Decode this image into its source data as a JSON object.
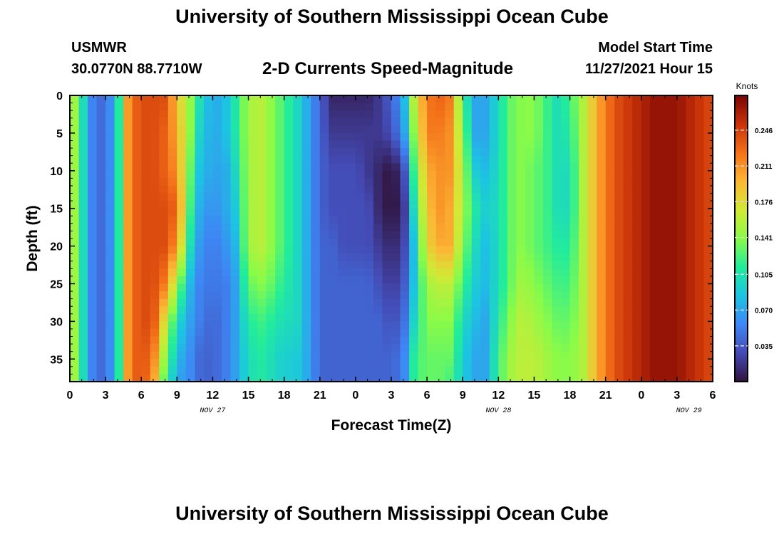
{
  "header": {
    "title": "University of Southern Mississippi Ocean Cube",
    "station": "USMWR",
    "coordinates": "30.0770N  88.7710W",
    "plot_title": "2-D Currents Speed-Magnitude",
    "model_start_label": "Model Start Time",
    "model_start_value": "11/27/2021 Hour 15"
  },
  "footer": {
    "title": "University of Southern Mississippi Ocean Cube"
  },
  "chart_data": {
    "type": "heatmap",
    "title": "2-D Currents Speed-Magnitude",
    "xlabel": "Forecast Time(Z)",
    "ylabel": "Depth (ft)",
    "x_unit": "hours since 0Z NOV 27",
    "xlim": [
      0,
      54
    ],
    "ylim": [
      0,
      38
    ],
    "y_reversed": true,
    "x_ticks": [
      0,
      3,
      6,
      9,
      12,
      15,
      18,
      21,
      24,
      27,
      30,
      33,
      36,
      39,
      42,
      45,
      48,
      51,
      54
    ],
    "x_tick_labels": [
      "0",
      "3",
      "6",
      "9",
      "12",
      "15",
      "18",
      "21",
      "0",
      "3",
      "6",
      "9",
      "12",
      "15",
      "18",
      "21",
      "0",
      "3",
      "6"
    ],
    "y_ticks": [
      0,
      5,
      10,
      15,
      20,
      25,
      30,
      35
    ],
    "y_tick_labels": [
      "0",
      "5",
      "10",
      "15",
      "20",
      "25",
      "30",
      "35"
    ],
    "date_labels": [
      {
        "text": "NOV 27",
        "x": 12
      },
      {
        "text": "NOV 28",
        "x": 36
      },
      {
        "text": "NOV 29",
        "x": 52
      }
    ],
    "colorbar": {
      "label": "Knots",
      "min": 0,
      "max": 0.28,
      "ticks": [
        0.035,
        0.07,
        0.105,
        0.141,
        0.176,
        0.211,
        0.246
      ],
      "tick_labels": [
        "0.035",
        "0.070",
        "0.105",
        "0.141",
        "0.176",
        "0.211",
        "0.246"
      ]
    },
    "grid": false,
    "depths": [
      0,
      5,
      10,
      15,
      20,
      25,
      30,
      35,
      38
    ],
    "times": [
      0,
      0.5,
      1,
      1.5,
      2,
      3,
      4,
      4.5,
      5,
      6,
      7,
      8,
      9,
      10,
      10.5,
      11,
      12,
      13,
      14,
      15,
      16,
      17,
      18,
      19,
      20,
      21,
      22,
      23,
      24,
      25,
      26,
      27,
      28,
      29,
      30,
      31,
      32,
      33,
      34,
      35,
      36,
      37,
      38,
      39,
      40,
      41,
      42,
      43,
      44,
      45,
      46,
      47,
      48,
      49,
      50,
      51,
      52,
      53,
      54
    ],
    "speed_knots": [
      [
        0.17,
        0.17,
        0.17,
        0.17,
        0.17,
        0.17,
        0.17,
        0.17,
        0.17
      ],
      [
        0.14,
        0.14,
        0.14,
        0.14,
        0.14,
        0.14,
        0.14,
        0.14,
        0.14
      ],
      [
        0.11,
        0.11,
        0.11,
        0.11,
        0.11,
        0.11,
        0.11,
        0.11,
        0.11
      ],
      [
        0.07,
        0.07,
        0.07,
        0.07,
        0.07,
        0.07,
        0.07,
        0.07,
        0.07
      ],
      [
        0.05,
        0.05,
        0.05,
        0.05,
        0.05,
        0.05,
        0.05,
        0.05,
        0.05
      ],
      [
        0.04,
        0.04,
        0.04,
        0.04,
        0.04,
        0.04,
        0.04,
        0.04,
        0.04
      ],
      [
        0.09,
        0.09,
        0.09,
        0.09,
        0.09,
        0.09,
        0.09,
        0.09,
        0.09
      ],
      [
        0.17,
        0.17,
        0.17,
        0.17,
        0.17,
        0.17,
        0.17,
        0.17,
        0.17
      ],
      [
        0.22,
        0.22,
        0.22,
        0.22,
        0.22,
        0.22,
        0.22,
        0.22,
        0.22
      ],
      [
        0.24,
        0.24,
        0.24,
        0.24,
        0.24,
        0.24,
        0.24,
        0.24,
        0.24
      ],
      [
        0.24,
        0.24,
        0.24,
        0.24,
        0.24,
        0.24,
        0.24,
        0.22,
        0.21
      ],
      [
        0.24,
        0.23,
        0.23,
        0.24,
        0.24,
        0.22,
        0.17,
        0.14,
        0.12
      ],
      [
        0.19,
        0.2,
        0.21,
        0.23,
        0.21,
        0.15,
        0.1,
        0.08,
        0.07
      ],
      [
        0.15,
        0.15,
        0.14,
        0.13,
        0.11,
        0.08,
        0.07,
        0.06,
        0.06
      ],
      [
        0.12,
        0.11,
        0.1,
        0.09,
        0.08,
        0.07,
        0.06,
        0.05,
        0.05
      ],
      [
        0.1,
        0.09,
        0.08,
        0.07,
        0.06,
        0.05,
        0.05,
        0.04,
        0.04
      ],
      [
        0.07,
        0.07,
        0.07,
        0.06,
        0.05,
        0.05,
        0.04,
        0.04,
        0.04
      ],
      [
        0.08,
        0.08,
        0.07,
        0.07,
        0.06,
        0.05,
        0.05,
        0.05,
        0.05
      ],
      [
        0.11,
        0.11,
        0.1,
        0.09,
        0.08,
        0.07,
        0.07,
        0.07,
        0.07
      ],
      [
        0.15,
        0.15,
        0.15,
        0.15,
        0.15,
        0.13,
        0.11,
        0.1,
        0.1
      ],
      [
        0.16,
        0.16,
        0.16,
        0.16,
        0.16,
        0.14,
        0.12,
        0.11,
        0.11
      ],
      [
        0.14,
        0.14,
        0.14,
        0.14,
        0.14,
        0.13,
        0.11,
        0.1,
        0.1
      ],
      [
        0.12,
        0.12,
        0.12,
        0.12,
        0.12,
        0.11,
        0.1,
        0.09,
        0.09
      ],
      [
        0.1,
        0.1,
        0.1,
        0.1,
        0.1,
        0.1,
        0.1,
        0.09,
        0.09
      ],
      [
        0.07,
        0.07,
        0.07,
        0.07,
        0.07,
        0.07,
        0.07,
        0.07,
        0.07
      ],
      [
        0.04,
        0.04,
        0.04,
        0.04,
        0.04,
        0.04,
        0.04,
        0.04,
        0.04
      ],
      [
        0.01,
        0.02,
        0.03,
        0.03,
        0.04,
        0.04,
        0.04,
        0.04,
        0.04
      ],
      [
        0.01,
        0.02,
        0.03,
        0.03,
        0.03,
        0.04,
        0.04,
        0.04,
        0.04
      ],
      [
        0.01,
        0.02,
        0.03,
        0.03,
        0.03,
        0.04,
        0.04,
        0.04,
        0.04
      ],
      [
        0.01,
        0.02,
        0.02,
        0.03,
        0.03,
        0.04,
        0.04,
        0.04,
        0.04
      ],
      [
        0.02,
        0.02,
        0.01,
        0.01,
        0.02,
        0.03,
        0.04,
        0.04,
        0.04
      ],
      [
        0.04,
        0.03,
        0.0,
        0.0,
        0.01,
        0.02,
        0.03,
        0.04,
        0.04
      ],
      [
        0.07,
        0.06,
        0.02,
        0.01,
        0.02,
        0.03,
        0.04,
        0.05,
        0.05
      ],
      [
        0.17,
        0.15,
        0.13,
        0.11,
        0.09,
        0.09,
        0.1,
        0.12,
        0.12
      ],
      [
        0.22,
        0.22,
        0.2,
        0.19,
        0.18,
        0.15,
        0.14,
        0.13,
        0.13
      ],
      [
        0.23,
        0.22,
        0.21,
        0.21,
        0.2,
        0.16,
        0.14,
        0.13,
        0.13
      ],
      [
        0.22,
        0.21,
        0.21,
        0.2,
        0.2,
        0.16,
        0.14,
        0.13,
        0.12
      ],
      [
        0.12,
        0.14,
        0.15,
        0.15,
        0.14,
        0.12,
        0.1,
        0.09,
        0.09
      ],
      [
        0.07,
        0.07,
        0.09,
        0.11,
        0.1,
        0.09,
        0.08,
        0.07,
        0.07
      ],
      [
        0.07,
        0.07,
        0.08,
        0.09,
        0.08,
        0.08,
        0.07,
        0.07,
        0.07
      ],
      [
        0.1,
        0.1,
        0.1,
        0.1,
        0.1,
        0.1,
        0.11,
        0.12,
        0.12
      ],
      [
        0.13,
        0.13,
        0.13,
        0.13,
        0.13,
        0.13,
        0.14,
        0.15,
        0.15
      ],
      [
        0.14,
        0.14,
        0.14,
        0.14,
        0.14,
        0.15,
        0.16,
        0.16,
        0.16
      ],
      [
        0.14,
        0.14,
        0.13,
        0.13,
        0.13,
        0.14,
        0.15,
        0.16,
        0.16
      ],
      [
        0.12,
        0.12,
        0.12,
        0.12,
        0.12,
        0.13,
        0.14,
        0.15,
        0.15
      ],
      [
        0.1,
        0.1,
        0.1,
        0.1,
        0.11,
        0.12,
        0.13,
        0.14,
        0.14
      ],
      [
        0.12,
        0.11,
        0.1,
        0.1,
        0.11,
        0.12,
        0.13,
        0.14,
        0.14
      ],
      [
        0.15,
        0.15,
        0.15,
        0.15,
        0.15,
        0.15,
        0.15,
        0.15,
        0.15
      ],
      [
        0.19,
        0.19,
        0.19,
        0.19,
        0.19,
        0.19,
        0.19,
        0.19,
        0.19
      ],
      [
        0.22,
        0.22,
        0.22,
        0.22,
        0.22,
        0.22,
        0.22,
        0.22,
        0.22
      ],
      [
        0.24,
        0.24,
        0.24,
        0.24,
        0.24,
        0.24,
        0.24,
        0.24,
        0.24
      ],
      [
        0.25,
        0.25,
        0.25,
        0.25,
        0.25,
        0.25,
        0.25,
        0.25,
        0.25
      ],
      [
        0.26,
        0.26,
        0.26,
        0.26,
        0.26,
        0.26,
        0.26,
        0.26,
        0.26
      ],
      [
        0.27,
        0.27,
        0.27,
        0.27,
        0.27,
        0.27,
        0.27,
        0.27,
        0.27
      ],
      [
        0.27,
        0.27,
        0.27,
        0.27,
        0.27,
        0.27,
        0.27,
        0.27,
        0.27
      ],
      [
        0.27,
        0.27,
        0.27,
        0.27,
        0.27,
        0.27,
        0.27,
        0.27,
        0.27
      ],
      [
        0.26,
        0.26,
        0.26,
        0.26,
        0.26,
        0.26,
        0.26,
        0.26,
        0.26
      ],
      [
        0.25,
        0.25,
        0.25,
        0.25,
        0.25,
        0.25,
        0.25,
        0.25,
        0.25
      ],
      [
        0.24,
        0.24,
        0.24,
        0.24,
        0.24,
        0.24,
        0.24,
        0.24,
        0.24
      ]
    ]
  }
}
